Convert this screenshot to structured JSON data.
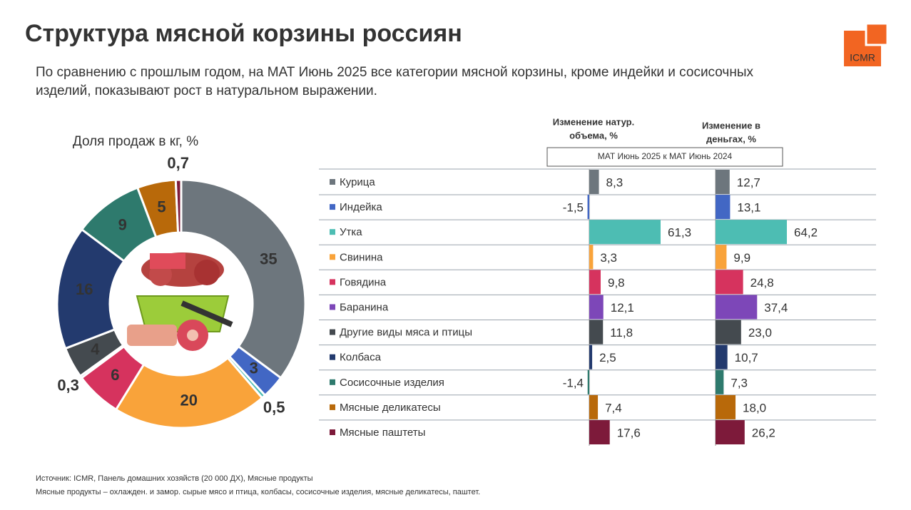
{
  "header": {
    "title": "Структура мясной корзины россиян",
    "subtitle": [
      "По сравнению с прошлым годом, на МАТ Июнь 2025 все категории мясной корзины, кроме индейки и сосисочных",
      "изделий, показывают рост в натуральном выражении."
    ]
  },
  "logo": "ICMR",
  "period": "МАТ Июнь 2025 к МАТ Июнь 2024",
  "chart_data": [
    {
      "type": "pie",
      "title": "Доля продаж в кг, %",
      "categories": [
        "Курица",
        "Индейка",
        "Утка",
        "Свинина",
        "Говядина",
        "Баранина",
        "Другие виды мяса и птицы",
        "Колбаса",
        "Сосисочные изделия",
        "Мясные деликатесы",
        "Мясные паштеты"
      ],
      "colors": [
        "#6d767d",
        "#4267c4",
        "#4dbdb3",
        "#f9a33a",
        "#d6335e",
        "#7d47b8",
        "#444a4f",
        "#233a6e",
        "#2e7a6d",
        "#b8690a",
        "#7d1a3a"
      ],
      "values": [
        35,
        3,
        0.5,
        20,
        6,
        0.3,
        4,
        16,
        9,
        5,
        0.7
      ],
      "value_labels": [
        "35",
        "3",
        "0,5",
        "20",
        "6",
        "0,3",
        "4",
        "16",
        "9",
        "5",
        "0,7"
      ]
    },
    {
      "type": "bar",
      "title": [
        "Изменение  натур.",
        "объема, %"
      ],
      "values": [
        8.3,
        -1.5,
        61.3,
        3.3,
        9.8,
        12.1,
        11.8,
        2.5,
        -1.4,
        7.4,
        17.6
      ],
      "value_labels": [
        "8,3",
        "-1,5",
        "61,3",
        "3,3",
        "9,8",
        "12,1",
        "11,8",
        "2,5",
        "-1,4",
        "7,4",
        "17,6"
      ]
    },
    {
      "type": "bar",
      "title": [
        "Изменение в",
        "деньгах, %"
      ],
      "values": [
        12.7,
        13.1,
        64.2,
        9.9,
        24.8,
        37.4,
        23.0,
        10.7,
        7.3,
        18.0,
        26.2
      ],
      "value_labels": [
        "12,7",
        "13,1",
        "64,2",
        "9,9",
        "24,8",
        "37,4",
        "23,0",
        "10,7",
        "7,3",
        "18,0",
        "26,2"
      ]
    }
  ],
  "footnotes": [
    "Источник: ICMR, Панель домашних хозяйств (20 000 ДХ), Мясные продукты",
    "Мясные продукты – охлажден. и замор. сырые мясо и птица, колбасы, сосисочные изделия, мясные деликатесы, паштет."
  ]
}
